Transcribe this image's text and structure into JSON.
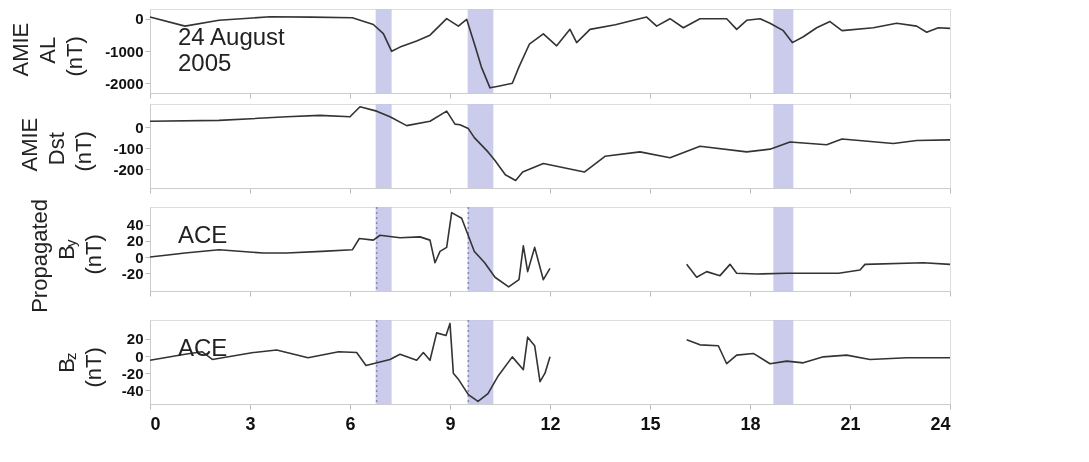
{
  "chart_data": [
    {
      "type": "line",
      "ylabel": "AMIE AL (nT)",
      "xlim": [
        0,
        24
      ],
      "xticks": [
        0,
        3,
        6,
        9,
        12,
        15,
        18,
        21,
        24
      ],
      "ylim": [
        -2300,
        300
      ],
      "yticks": [
        0,
        -1000,
        -2000
      ],
      "tick_labels": "y",
      "annotations": [
        "24 August\n2005"
      ],
      "bands": [
        {
          "axis": "x",
          "from": 6.77,
          "to": 7.25,
          "color": "#c5c5ea"
        },
        {
          "axis": "x",
          "from": 9.53,
          "to": 10.3,
          "color": "#c5c5ea"
        },
        {
          "axis": "x",
          "from": 18.7,
          "to": 19.3,
          "color": "#c5c5ea"
        }
      ],
      "x": [
        0,
        1.05,
        2.07,
        3.6,
        4.84,
        6.07,
        6.7,
        7.0,
        7.25,
        7.5,
        8.0,
        8.4,
        8.9,
        9.25,
        9.5,
        9.75,
        9.94,
        10.2,
        10.45,
        10.87,
        11.07,
        11.38,
        11.8,
        12.2,
        12.6,
        12.8,
        13.2,
        13.96,
        14.5,
        14.9,
        15.2,
        15.6,
        16.0,
        16.5,
        17.3,
        17.6,
        17.9,
        18.3,
        18.6,
        19.0,
        19.27,
        19.6,
        20.0,
        20.4,
        20.76,
        21.7,
        22.4,
        23.0,
        23.3,
        23.65,
        24
      ],
      "series": [
        {
          "color": "#333333",
          "values": [
            50,
            -230,
            -50,
            60,
            50,
            30,
            -180,
            -460,
            -1010,
            -880,
            -690,
            -510,
            0,
            -230,
            -20,
            -840,
            -1490,
            -2140,
            -2090,
            -2000,
            -1490,
            -790,
            -470,
            -840,
            -330,
            -740,
            -330,
            -190,
            -50,
            50,
            -230,
            0,
            -280,
            0,
            0,
            -330,
            -50,
            0,
            -140,
            -370,
            -740,
            -560,
            -280,
            -90,
            -370,
            -280,
            -140,
            -230,
            -420,
            -280,
            -300
          ]
        }
      ]
    },
    {
      "type": "line",
      "ylabel": "AMIE Dst (nT)",
      "xlim": [
        0,
        24
      ],
      "xticks": [
        0,
        3,
        6,
        9,
        12,
        15,
        18,
        21,
        24
      ],
      "ylim": [
        -290,
        110
      ],
      "yticks": [
        0,
        -100,
        -200
      ],
      "tick_labels": "y",
      "bands": [
        {
          "axis": "x",
          "from": 6.77,
          "to": 7.25,
          "color": "#c5c5ea"
        },
        {
          "axis": "x",
          "from": 9.53,
          "to": 10.3,
          "color": "#c5c5ea"
        },
        {
          "axis": "x",
          "from": 18.7,
          "to": 19.3,
          "color": "#c5c5ea"
        }
      ],
      "x": [
        0,
        2.07,
        4.1,
        5.1,
        6.0,
        6.3,
        6.8,
        7.2,
        7.7,
        8.4,
        8.9,
        9.15,
        9.3,
        9.55,
        9.73,
        10.14,
        10.35,
        10.66,
        10.97,
        11.18,
        11.8,
        12.2,
        13.03,
        13.65,
        14.7,
        15.6,
        16.5,
        17.9,
        18.6,
        19.2,
        20.3,
        20.76,
        22.3,
        23.0,
        24
      ],
      "series": [
        {
          "color": "#333333",
          "values": [
            28,
            32,
            49,
            56,
            49,
            97,
            76,
            49,
            7,
            28,
            76,
            14,
            11,
            -7,
            -50,
            -118,
            -159,
            -227,
            -254,
            -214,
            -173,
            -186,
            -214,
            -139,
            -118,
            -146,
            -91,
            -118,
            -105,
            -71,
            -84,
            -57,
            -78,
            -64,
            -61
          ]
        }
      ]
    },
    {
      "type": "line",
      "ylabel": "Propagated B$_{y}$ (nT)",
      "xlim": [
        0,
        24
      ],
      "xticks": [
        0,
        3,
        6,
        9,
        12,
        15,
        18,
        21,
        24
      ],
      "ylim": [
        -42,
        62
      ],
      "yticks": [
        40,
        20,
        0,
        -20
      ],
      "tick_labels": "y",
      "annotations": [
        "ACE"
      ],
      "bands": [
        {
          "axis": "x",
          "from": 6.77,
          "to": 7.25,
          "color": "#c5c5ea"
        },
        {
          "axis": "x",
          "from": 9.53,
          "to": 10.3,
          "color": "#c5c5ea"
        },
        {
          "axis": "x",
          "from": 18.7,
          "to": 19.3,
          "color": "#c5c5ea"
        }
      ],
      "ref_lines": [
        {
          "axis": "x",
          "value": 6.8,
          "line_style": "dotted",
          "color": "#8888bb"
        },
        {
          "axis": "x",
          "value": 9.55,
          "line_style": "dotted",
          "color": "#8888bb"
        }
      ],
      "x": [
        0,
        1.05,
        2.07,
        3.4,
        4.1,
        5.15,
        6.07,
        6.28,
        6.7,
        6.9,
        7.5,
        8.1,
        8.4,
        8.55,
        8.7,
        8.9,
        9.05,
        9.35,
        9.73,
        10.04,
        10.35,
        10.76,
        11.07,
        11.2,
        11.33,
        11.54,
        11.8,
        12.0,
        14,
        16.1,
        16.4,
        16.7,
        17.1,
        17.4,
        17.6,
        18.2,
        19.1,
        20.66,
        21.3,
        21.45,
        23.2,
        24
      ],
      "series": [
        {
          "color": "#333333",
          "values": [
            0,
            5,
            9,
            5,
            5,
            7,
            9,
            23,
            21,
            27,
            24,
            25,
            21,
            -7,
            7,
            12,
            55,
            48,
            7,
            -7,
            -25,
            -37,
            -28,
            14,
            -18,
            12,
            -28,
            -14,
            null,
            -9,
            -25,
            -18,
            -23,
            -9,
            -20,
            -21,
            -20,
            -20,
            -16,
            -9,
            -7,
            -9
          ]
        }
      ]
    },
    {
      "type": "line",
      "ylabel": "B$_{z}$ (nT)",
      "xlim": [
        0,
        24
      ],
      "xticks": [
        0,
        3,
        6,
        9,
        12,
        15,
        18,
        21,
        24
      ],
      "ylim": [
        -56,
        42
      ],
      "yticks": [
        20,
        0,
        -20,
        -40
      ],
      "annotations": [
        "ACE"
      ],
      "bands": [
        {
          "axis": "x",
          "from": 6.77,
          "to": 7.25,
          "color": "#c5c5ea"
        },
        {
          "axis": "x",
          "from": 9.53,
          "to": 10.3,
          "color": "#c5c5ea"
        },
        {
          "axis": "x",
          "from": 18.7,
          "to": 19.3,
          "color": "#c5c5ea"
        }
      ],
      "ref_lines": [
        {
          "axis": "x",
          "value": 6.8,
          "line_style": "dotted",
          "color": "#8888bb"
        },
        {
          "axis": "x",
          "value": 9.55,
          "line_style": "dotted",
          "color": "#8888bb"
        }
      ],
      "x": [
        0,
        1.05,
        1.56,
        1.87,
        3.1,
        3.8,
        4.74,
        5.66,
        6.2,
        6.48,
        7.2,
        7.5,
        8.0,
        8.2,
        8.4,
        8.6,
        8.88,
        9.0,
        9.1,
        9.25,
        9.55,
        9.84,
        10.14,
        10.45,
        10.87,
        11.2,
        11.33,
        11.54,
        11.7,
        11.85,
        12.0,
        14,
        16.1,
        16.5,
        17.05,
        17.3,
        17.6,
        18.1,
        18.6,
        19.1,
        19.6,
        20.2,
        20.9,
        21.6,
        22.7,
        24
      ],
      "series": [
        {
          "color": "#333333",
          "values": [
            -5,
            2,
            5,
            -4,
            4,
            7,
            -2,
            5,
            4,
            -11,
            -4,
            2,
            -5,
            4,
            -5,
            27,
            24,
            38,
            -20,
            -27,
            -45,
            -53,
            -44,
            -23,
            -1,
            -16,
            22,
            12,
            -30,
            -20,
            -1,
            null,
            19,
            13,
            12,
            -9,
            1,
            3,
            -9,
            -6,
            -8,
            -1,
            1,
            -4,
            -2,
            -2
          ]
        }
      ]
    }
  ]
}
